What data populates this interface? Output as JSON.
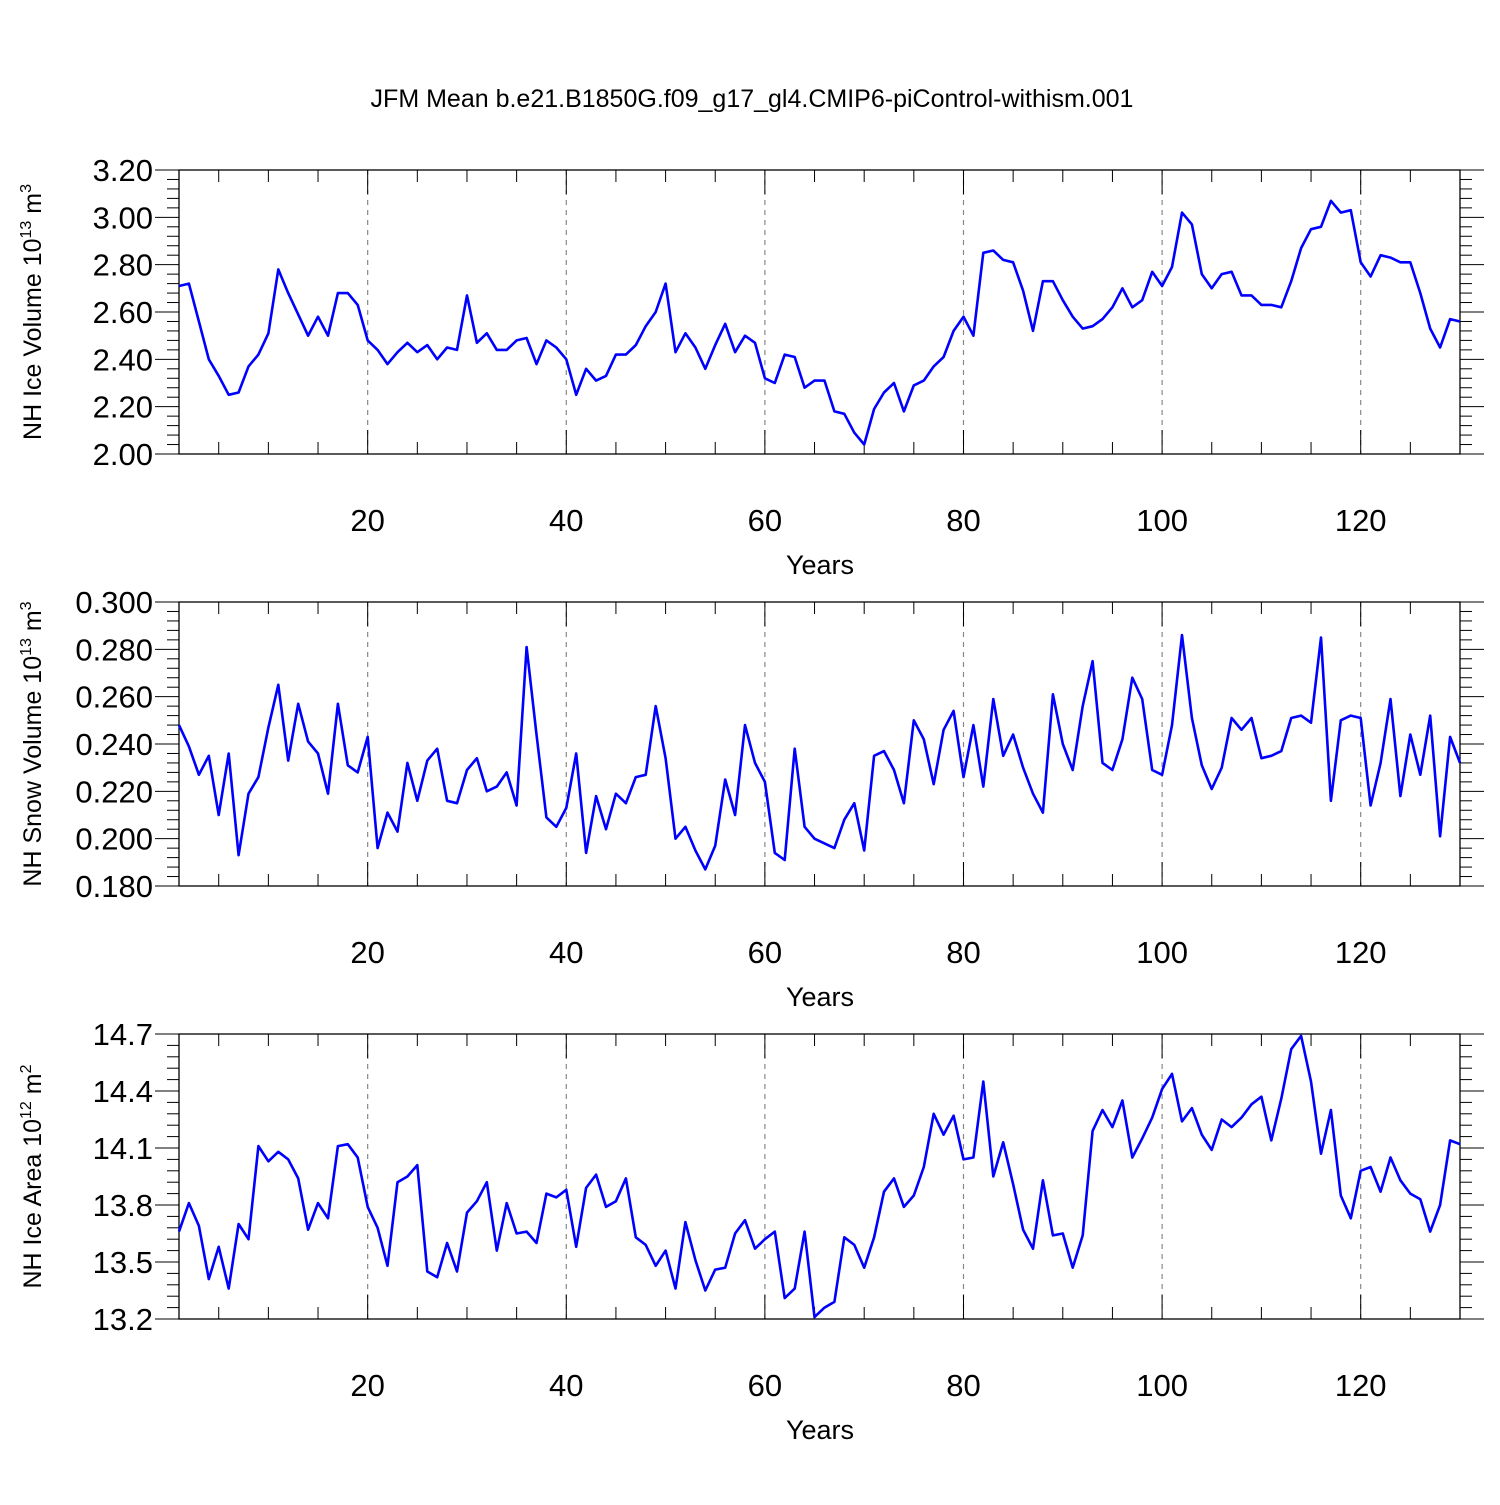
{
  "title": "JFM Mean b.e21.B1850G.f09_g17_gl4.CMIP6-piControl-withism.001",
  "line_color": "#0000ff",
  "chart_data": [
    {
      "type": "line",
      "ylabel_main": "NH Ice Volume 10",
      "ylabel_exp": "13",
      "ylabel_unit": " m",
      "ylabel_unit_exp": "3",
      "xlabel": "Years",
      "xlim": [
        1,
        130
      ],
      "ylim": [
        2.0,
        3.2
      ],
      "yticks": [
        "2.00",
        "2.20",
        "2.40",
        "2.60",
        "2.80",
        "3.00",
        "3.20"
      ],
      "xticks": [
        "20",
        "40",
        "60",
        "80",
        "100",
        "120"
      ],
      "values": [
        2.71,
        2.72,
        2.56,
        2.4,
        2.33,
        2.25,
        2.26,
        2.37,
        2.42,
        2.51,
        2.78,
        2.68,
        2.59,
        2.5,
        2.58,
        2.5,
        2.68,
        2.68,
        2.63,
        2.48,
        2.44,
        2.38,
        2.43,
        2.47,
        2.43,
        2.46,
        2.4,
        2.45,
        2.44,
        2.67,
        2.47,
        2.51,
        2.44,
        2.44,
        2.48,
        2.49,
        2.38,
        2.48,
        2.45,
        2.4,
        2.25,
        2.36,
        2.31,
        2.33,
        2.42,
        2.42,
        2.46,
        2.54,
        2.6,
        2.72,
        2.43,
        2.51,
        2.45,
        2.36,
        2.46,
        2.55,
        2.43,
        2.5,
        2.47,
        2.32,
        2.3,
        2.42,
        2.41,
        2.28,
        2.31,
        2.31,
        2.18,
        2.17,
        2.09,
        2.04,
        2.19,
        2.26,
        2.3,
        2.18,
        2.29,
        2.31,
        2.37,
        2.41,
        2.52,
        2.58,
        2.5,
        2.85,
        2.86,
        2.82,
        2.81,
        2.69,
        2.52,
        2.73,
        2.73,
        2.65,
        2.58,
        2.53,
        2.54,
        2.57,
        2.62,
        2.7,
        2.62,
        2.65,
        2.77,
        2.71,
        2.79,
        3.02,
        2.97,
        2.76,
        2.7,
        2.76,
        2.77,
        2.67,
        2.67,
        2.63,
        2.63,
        2.62,
        2.73,
        2.87,
        2.95,
        2.96,
        3.07,
        3.02,
        3.03,
        2.81,
        2.75,
        2.84,
        2.83,
        2.81,
        2.81,
        2.68,
        2.53,
        2.45,
        2.57,
        2.56
      ]
    },
    {
      "type": "line",
      "ylabel_main": "NH Snow Volume 10",
      "ylabel_exp": "13",
      "ylabel_unit": " m",
      "ylabel_unit_exp": "3",
      "xlabel": "Years",
      "xlim": [
        1,
        130
      ],
      "ylim": [
        0.18,
        0.3
      ],
      "yticks": [
        "0.180",
        "0.200",
        "0.220",
        "0.240",
        "0.260",
        "0.280",
        "0.300"
      ],
      "xticks": [
        "20",
        "40",
        "60",
        "80",
        "100",
        "120"
      ],
      "values": [
        0.248,
        0.239,
        0.227,
        0.235,
        0.21,
        0.236,
        0.193,
        0.219,
        0.226,
        0.247,
        0.265,
        0.233,
        0.257,
        0.241,
        0.236,
        0.219,
        0.257,
        0.231,
        0.228,
        0.243,
        0.196,
        0.211,
        0.203,
        0.232,
        0.216,
        0.233,
        0.238,
        0.216,
        0.215,
        0.229,
        0.234,
        0.22,
        0.222,
        0.228,
        0.214,
        0.281,
        0.244,
        0.209,
        0.205,
        0.213,
        0.236,
        0.194,
        0.218,
        0.204,
        0.219,
        0.215,
        0.226,
        0.227,
        0.256,
        0.234,
        0.2,
        0.205,
        0.195,
        0.187,
        0.197,
        0.225,
        0.21,
        0.248,
        0.232,
        0.224,
        0.194,
        0.191,
        0.238,
        0.205,
        0.2,
        0.198,
        0.196,
        0.208,
        0.215,
        0.195,
        0.235,
        0.237,
        0.229,
        0.215,
        0.25,
        0.242,
        0.223,
        0.246,
        0.254,
        0.226,
        0.248,
        0.222,
        0.259,
        0.235,
        0.244,
        0.23,
        0.219,
        0.211,
        0.261,
        0.24,
        0.229,
        0.256,
        0.275,
        0.232,
        0.229,
        0.242,
        0.268,
        0.259,
        0.229,
        0.227,
        0.248,
        0.286,
        0.251,
        0.231,
        0.221,
        0.23,
        0.251,
        0.246,
        0.251,
        0.234,
        0.235,
        0.237,
        0.251,
        0.252,
        0.249,
        0.285,
        0.216,
        0.25,
        0.252,
        0.251,
        0.214,
        0.232,
        0.259,
        0.218,
        0.244,
        0.227,
        0.252,
        0.201,
        0.243,
        0.232
      ]
    },
    {
      "type": "line",
      "ylabel_main": "NH Ice Area 10",
      "ylabel_exp": "12",
      "ylabel_unit": " m",
      "ylabel_unit_exp": "2",
      "xlabel": "Years",
      "xlim": [
        1,
        130
      ],
      "ylim": [
        13.2,
        14.7
      ],
      "yticks": [
        "13.2",
        "13.5",
        "13.8",
        "14.1",
        "14.4",
        "14.7"
      ],
      "xticks": [
        "20",
        "40",
        "60",
        "80",
        "100",
        "120"
      ],
      "values": [
        13.66,
        13.81,
        13.69,
        13.41,
        13.58,
        13.36,
        13.7,
        13.62,
        14.11,
        14.03,
        14.08,
        14.04,
        13.94,
        13.67,
        13.81,
        13.73,
        14.11,
        14.12,
        14.05,
        13.79,
        13.68,
        13.48,
        13.92,
        13.95,
        14.01,
        13.45,
        13.42,
        13.6,
        13.45,
        13.76,
        13.82,
        13.92,
        13.56,
        13.81,
        13.65,
        13.66,
        13.6,
        13.86,
        13.84,
        13.88,
        13.58,
        13.89,
        13.96,
        13.79,
        13.82,
        13.94,
        13.63,
        13.59,
        13.48,
        13.56,
        13.36,
        13.71,
        13.51,
        13.35,
        13.46,
        13.47,
        13.65,
        13.72,
        13.57,
        13.62,
        13.66,
        13.31,
        13.36,
        13.66,
        13.21,
        13.26,
        13.29,
        13.63,
        13.59,
        13.47,
        13.63,
        13.87,
        13.94,
        13.79,
        13.85,
        14.0,
        14.28,
        14.17,
        14.27,
        14.04,
        14.05,
        14.45,
        13.95,
        14.13,
        13.91,
        13.67,
        13.57,
        13.93,
        13.64,
        13.65,
        13.47,
        13.64,
        14.19,
        14.3,
        14.21,
        14.35,
        14.05,
        14.15,
        14.26,
        14.41,
        14.49,
        14.24,
        14.31,
        14.17,
        14.09,
        14.25,
        14.21,
        14.26,
        14.33,
        14.37,
        14.14,
        14.36,
        14.62,
        14.69,
        14.45,
        14.07,
        14.3,
        13.85,
        13.73,
        13.98,
        14.0,
        13.87,
        14.05,
        13.93,
        13.86,
        13.83,
        13.66,
        13.8,
        14.14,
        14.12
      ]
    }
  ]
}
